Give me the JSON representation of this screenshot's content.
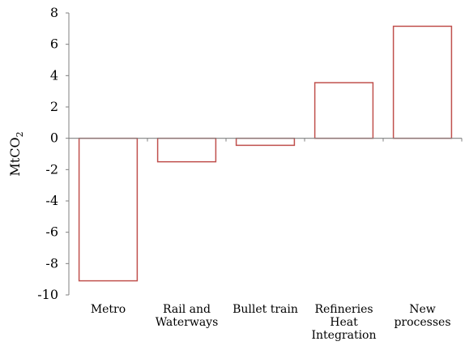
{
  "chart_data": {
    "type": "bar",
    "title": "",
    "xlabel": "",
    "ylabel": "MtCO",
    "ylabel_subscript": "2",
    "ylim": [
      -10,
      8
    ],
    "yticks": [
      8,
      6,
      4,
      2,
      0,
      -2,
      -4,
      -6,
      -8,
      -10
    ],
    "ytick_labels": [
      "8",
      "6",
      "4",
      "2",
      "0",
      "-2",
      "-4",
      "-6",
      "-8",
      "-10"
    ],
    "categories": [
      [
        "Metro"
      ],
      [
        "Rail and",
        "Waterways"
      ],
      [
        "Bullet train"
      ],
      [
        "Refineries",
        "Heat",
        "Integration"
      ],
      [
        "New",
        "processes"
      ]
    ],
    "values": [
      -9.1,
      -1.5,
      -0.45,
      3.55,
      7.15
    ],
    "bar_fill": "#ffffff",
    "bar_stroke": "#c0504d",
    "zero_line_color": "#808080",
    "axis_color": "#808080",
    "grid": false,
    "legend": "none"
  }
}
